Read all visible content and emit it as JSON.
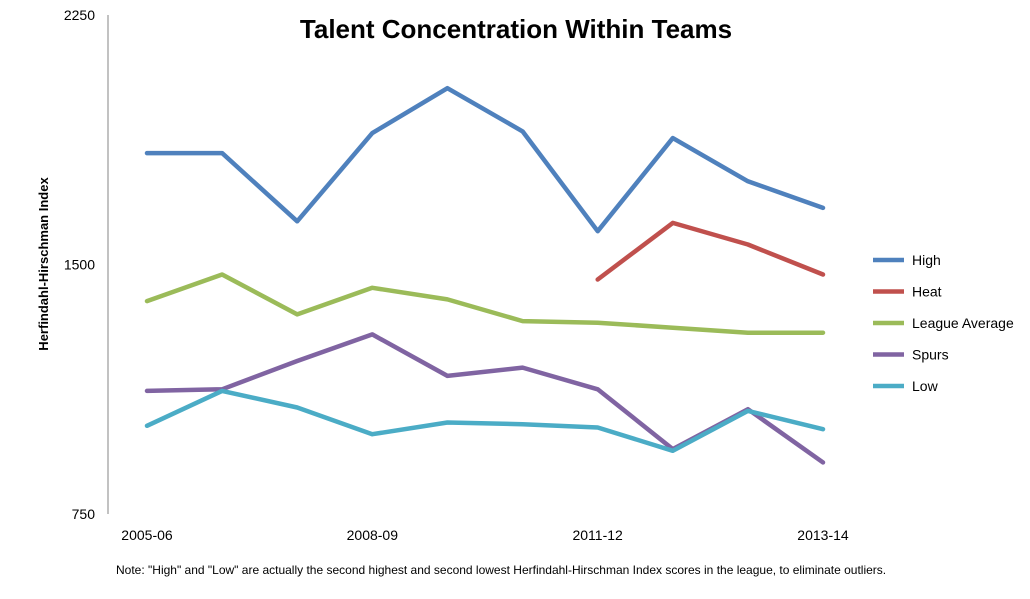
{
  "chart_data": {
    "type": "line",
    "title": "Talent Concentration Within Teams",
    "xlabel": "",
    "ylabel": "Herfindahl-Hirschman  Index",
    "ylim": [
      750,
      2250
    ],
    "y_ticks": [
      "2250",
      "1500",
      "750"
    ],
    "x_tick_labels": [
      {
        "index": 0,
        "label": "2005-06"
      },
      {
        "index": 3,
        "label": "2008-09"
      },
      {
        "index": 6,
        "label": "2011-12"
      },
      {
        "index": 9,
        "label": "2013-14"
      }
    ],
    "x_count": 10,
    "grid": false,
    "legend_position": "right",
    "series": [
      {
        "name": "High",
        "color": "#4F81BD",
        "start": 0,
        "values": [
          1835,
          1835,
          1630,
          1895,
          2030,
          1900,
          1600,
          1880,
          1750,
          1670
        ]
      },
      {
        "name": "Heat",
        "color": "#C0504D",
        "start": 6,
        "values": [
          1455,
          1625,
          1560,
          1470
        ]
      },
      {
        "name": "League Average",
        "color": "#9BBB59",
        "start": 0,
        "values": [
          1390,
          1470,
          1350,
          1430,
          1395,
          1330,
          1325,
          1310,
          1295,
          1295
        ]
      },
      {
        "name": "Spurs",
        "color": "#8064A2",
        "start": 0,
        "values": [
          1120,
          1125,
          1210,
          1290,
          1165,
          1190,
          1125,
          945,
          1065,
          905
        ]
      },
      {
        "name": "Low",
        "color": "#4BACC6",
        "start": 0,
        "values": [
          1015,
          1120,
          1070,
          990,
          1025,
          1020,
          1010,
          940,
          1060,
          1005
        ]
      }
    ],
    "note": "Note: \"High\" and \"Low\" are actually the second highest and second lowest Herfindahl-Hirschman Index scores in the league, to eliminate outliers."
  }
}
